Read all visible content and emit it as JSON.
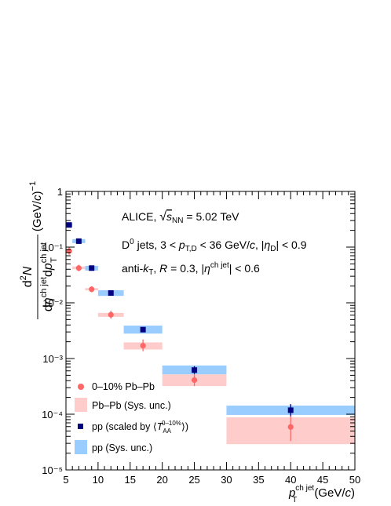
{
  "chart_data": {
    "type": "scatter",
    "title": "",
    "xlabel": "p_T^{ch jet} (GeV/c)",
    "ylabel": "d²N / dη^{ch jet} dp_T^{ch jet} (GeV/c)^{-1}",
    "xlim": [
      5,
      50
    ],
    "ylim": [
      1e-05,
      1
    ],
    "yscale": "log",
    "grid": false,
    "legend_position": "bottom-left",
    "x_ticks": [
      "5",
      "10",
      "15",
      "20",
      "25",
      "30",
      "35",
      "40",
      "45",
      "50"
    ],
    "y_ticks": [
      "10⁻⁵",
      "10⁻⁴",
      "10⁻³",
      "10⁻²",
      "10⁻¹",
      "1"
    ],
    "annotations": [
      "ALICE, √s_NN = 5.02 TeV",
      "D⁰ jets, 3 < p_T,D < 36 GeV/c, |η_D| < 0.9",
      "anti-k_T, R = 0.3, |η^ch jet| < 0.6"
    ],
    "series": [
      {
        "name": "0–10% Pb–Pb",
        "color": "#ff6666",
        "sys_color": "#ffcccc",
        "marker": "circle",
        "points": [
          {
            "x": 5.5,
            "x_lo": 5,
            "x_hi": 6,
            "y": 0.085,
            "y_lo": 0.073,
            "y_hi": 0.099,
            "sys_lo": 0.08,
            "sys_hi": 0.09
          },
          {
            "x": 7,
            "x_lo": 6,
            "x_hi": 8,
            "y": 0.042,
            "y_lo": 0.037,
            "y_hi": 0.048,
            "sys_lo": 0.04,
            "sys_hi": 0.045
          },
          {
            "x": 9,
            "x_lo": 8,
            "x_hi": 10,
            "y": 0.0175,
            "y_lo": 0.0155,
            "y_hi": 0.0198,
            "sys_lo": 0.0167,
            "sys_hi": 0.0184
          },
          {
            "x": 12,
            "x_lo": 10,
            "x_hi": 14,
            "y": 0.0061,
            "y_lo": 0.0052,
            "y_hi": 0.0072,
            "sys_lo": 0.0056,
            "sys_hi": 0.0066
          },
          {
            "x": 17,
            "x_lo": 14,
            "x_hi": 20,
            "y": 0.0017,
            "y_lo": 0.00135,
            "y_hi": 0.0022,
            "sys_lo": 0.00145,
            "sys_hi": 0.00195
          },
          {
            "x": 25,
            "x_lo": 20,
            "x_hi": 30,
            "y": 0.00041,
            "y_lo": 0.00032,
            "y_hi": 0.00053,
            "sys_lo": 0.00032,
            "sys_hi": 0.00052
          },
          {
            "x": 40,
            "x_lo": 30,
            "x_hi": 50,
            "y": 5.9e-05,
            "y_lo": 3.3e-05,
            "y_hi": 9.3e-05,
            "sys_lo": 2.9e-05,
            "sys_hi": 8.8e-05
          }
        ]
      },
      {
        "name": "pp (scaled by ⟨T_AA^{0–10%}⟩)",
        "color": "#000080",
        "sys_color": "#99ccff",
        "marker": "square",
        "points": [
          {
            "x": 5.5,
            "x_lo": 5,
            "x_hi": 6,
            "y": 0.25,
            "y_lo": 0.24,
            "y_hi": 0.26,
            "sys_lo": 0.235,
            "sys_hi": 0.265
          },
          {
            "x": 7,
            "x_lo": 6,
            "x_hi": 8,
            "y": 0.128,
            "y_lo": 0.124,
            "y_hi": 0.132,
            "sys_lo": 0.118,
            "sys_hi": 0.139
          },
          {
            "x": 9,
            "x_lo": 8,
            "x_hi": 10,
            "y": 0.042,
            "y_lo": 0.041,
            "y_hi": 0.043,
            "sys_lo": 0.038,
            "sys_hi": 0.046
          },
          {
            "x": 12,
            "x_lo": 10,
            "x_hi": 14,
            "y": 0.015,
            "y_lo": 0.0146,
            "y_hi": 0.0154,
            "sys_lo": 0.0133,
            "sys_hi": 0.0168
          },
          {
            "x": 17,
            "x_lo": 14,
            "x_hi": 20,
            "y": 0.0033,
            "y_lo": 0.0032,
            "y_hi": 0.0034,
            "sys_lo": 0.0028,
            "sys_hi": 0.0039
          },
          {
            "x": 25,
            "x_lo": 20,
            "x_hi": 30,
            "y": 0.00062,
            "y_lo": 0.00053,
            "y_hi": 0.00073,
            "sys_lo": 0.00052,
            "sys_hi": 0.00075
          },
          {
            "x": 40,
            "x_lo": 30,
            "x_hi": 50,
            "y": 0.000118,
            "y_lo": 9.2e-05,
            "y_hi": 0.000152,
            "sys_lo": 9.7e-05,
            "sys_hi": 0.000143
          }
        ]
      }
    ],
    "legend": [
      {
        "label": "0–10% Pb–Pb",
        "kind": "marker",
        "series": 0
      },
      {
        "label": "Pb–Pb (Sys. unc.)",
        "kind": "box",
        "series": 0
      },
      {
        "label": "pp (scaled by ⟨T_AA^{0–10%}⟩)",
        "kind": "marker",
        "series": 1
      },
      {
        "label": "pp (Sys. unc.)",
        "kind": "box",
        "series": 1
      }
    ]
  }
}
